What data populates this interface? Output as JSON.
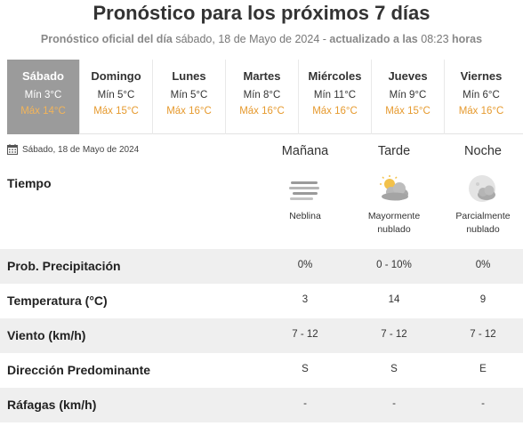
{
  "header": {
    "title": "Pronóstico para los próximos 7 días",
    "subtitle_prefix": "Pronóstico oficial del día",
    "subtitle_date": "sábado, 18 de Mayo de 2024",
    "subtitle_sep": " - ",
    "subtitle_updated": "actualizado a las",
    "subtitle_time": "08:23",
    "subtitle_suffix": "horas"
  },
  "days": [
    {
      "name": "Sábado",
      "min": "Mín 3°C",
      "max": "Máx 14°C",
      "active": true
    },
    {
      "name": "Domingo",
      "min": "Mín 5°C",
      "max": "Máx 15°C"
    },
    {
      "name": "Lunes",
      "min": "Mín 5°C",
      "max": "Máx 16°C"
    },
    {
      "name": "Martes",
      "min": "Mín 8°C",
      "max": "Máx 16°C"
    },
    {
      "name": "Miércoles",
      "min": "Mín 11°C",
      "max": "Máx 16°C"
    },
    {
      "name": "Jueves",
      "min": "Mín 9°C",
      "max": "Máx 15°C"
    },
    {
      "name": "Viernes",
      "min": "Mín 6°C",
      "max": "Máx 16°C"
    }
  ],
  "detail": {
    "date": "Sábado, 18 de Mayo de 2024",
    "date_icon": "calendar-icon",
    "periods": [
      "Mañana",
      "Tarde",
      "Noche"
    ],
    "weather_label": "Tiempo",
    "weather": [
      {
        "icon": "fog-icon",
        "text_line1": "Neblina",
        "text_line2": ""
      },
      {
        "icon": "sun-cloud-icon",
        "text_line1": "Mayormente",
        "text_line2": "nublado"
      },
      {
        "icon": "moon-cloud-icon",
        "text_line1": "Parcialmente",
        "text_line2": "nublado"
      }
    ],
    "rows": [
      {
        "label": "Prob. Precipitación",
        "values": [
          "0%",
          "0 - 10%",
          "0%"
        ]
      },
      {
        "label": "Temperatura (°C)",
        "values": [
          "3",
          "14",
          "9"
        ]
      },
      {
        "label": "Viento (km/h)",
        "values": [
          "7 - 12",
          "7 - 12",
          "7 - 12"
        ]
      },
      {
        "label": "Dirección Predominante",
        "values": [
          "S",
          "S",
          "E"
        ]
      },
      {
        "label": "Ráfagas (km/h)",
        "values": [
          "-",
          "-",
          "-"
        ]
      }
    ]
  },
  "colors": {
    "active_day_bg": "#9b9b9b",
    "max_temp": "#e69a2e",
    "row_shade": "#efefef"
  }
}
